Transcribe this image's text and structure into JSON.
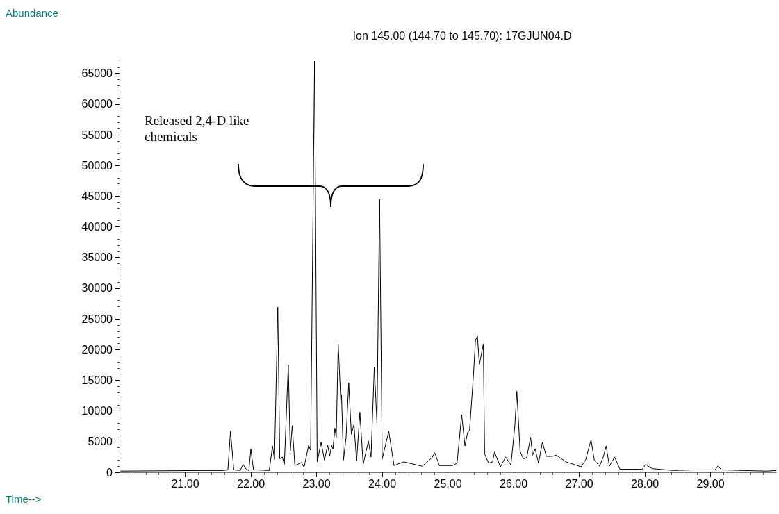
{
  "chart_data": {
    "type": "line",
    "title": "Ion 145.00 (144.70 to 145.70): 17GJUN04.D",
    "xlabel": "Time-->",
    "ylabel": "Abundance",
    "annotations": [
      "Released 2,4-D like chemicals"
    ],
    "xlim": [
      20,
      30
    ],
    "xticks": [
      {
        "value": 21,
        "label": "21.00"
      },
      {
        "value": 22,
        "label": "22.00"
      },
      {
        "value": 23,
        "label": "23.00"
      },
      {
        "value": 24,
        "label": "24.00"
      },
      {
        "value": 25,
        "label": "25.00"
      },
      {
        "value": 26,
        "label": "26.00"
      },
      {
        "value": 27,
        "label": "27.00"
      },
      {
        "value": 28,
        "label": "28.00"
      },
      {
        "value": 29,
        "label": "29.00"
      }
    ],
    "ylim": [
      0,
      67000
    ],
    "yticks": [
      0,
      5000,
      10000,
      15000,
      20000,
      25000,
      30000,
      35000,
      40000,
      45000,
      50000,
      55000,
      60000,
      65000
    ],
    "grid": false,
    "marker": "none",
    "line_style": "solid",
    "series": [
      {
        "color": "#000000",
        "x": [
          20.0,
          21.29,
          21.58,
          21.65,
          21.69,
          21.74,
          21.84,
          21.88,
          21.93,
          21.97,
          22.0,
          22.04,
          22.28,
          22.33,
          22.36,
          22.41,
          22.44,
          22.48,
          22.51,
          22.57,
          22.6,
          22.63,
          22.67,
          22.77,
          22.81,
          22.88,
          22.91,
          22.97,
          23.01,
          23.07,
          23.12,
          23.17,
          23.2,
          23.23,
          23.25,
          23.28,
          23.3,
          23.33,
          23.37,
          23.38,
          23.41,
          23.45,
          23.49,
          23.53,
          23.57,
          23.61,
          23.66,
          23.71,
          23.79,
          23.83,
          23.88,
          23.92,
          23.96,
          24.0,
          24.1,
          24.18,
          24.33,
          24.61,
          24.76,
          24.8,
          24.87,
          25.07,
          25.14,
          25.21,
          25.26,
          25.3,
          25.33,
          25.39,
          25.42,
          25.45,
          25.48,
          25.54,
          25.56,
          25.62,
          25.68,
          25.71,
          25.8,
          25.88,
          25.96,
          26.02,
          26.05,
          26.1,
          26.15,
          26.2,
          26.26,
          26.29,
          26.33,
          26.38,
          26.44,
          26.5,
          26.59,
          26.65,
          26.8,
          27.03,
          27.1,
          27.18,
          27.23,
          27.31,
          27.37,
          27.41,
          27.46,
          27.54,
          27.62,
          27.96,
          28.01,
          28.11,
          28.43,
          28.78,
          29.07,
          29.11,
          29.17,
          29.49,
          29.85,
          30.0
        ],
        "values": [
          200,
          300,
          300,
          400,
          6700,
          400,
          300,
          1300,
          500,
          300,
          3800,
          400,
          300,
          4300,
          2100,
          26900,
          2200,
          2500,
          1300,
          17500,
          3400,
          7600,
          1100,
          1600,
          800,
          4400,
          3600,
          67000,
          1700,
          4900,
          2000,
          4400,
          2700,
          4400,
          3800,
          7200,
          5700,
          20900,
          11500,
          12700,
          2000,
          5700,
          14600,
          6200,
          7800,
          1800,
          9800,
          1300,
          5100,
          2500,
          17200,
          8000,
          44500,
          2200,
          6700,
          1100,
          1700,
          1000,
          2400,
          3200,
          1100,
          1100,
          1500,
          9400,
          4300,
          6500,
          6800,
          15900,
          21500,
          22200,
          17600,
          20900,
          3000,
          1500,
          1700,
          3300,
          900,
          2500,
          1200,
          7600,
          13200,
          3400,
          2200,
          2400,
          5700,
          2800,
          3800,
          1500,
          4900,
          2600,
          2600,
          2800,
          1700,
          900,
          2100,
          5300,
          2000,
          1000,
          2600,
          4300,
          1000,
          2500,
          500,
          500,
          1300,
          600,
          300,
          400,
          400,
          1000,
          400,
          300,
          200,
          300
        ]
      }
    ]
  }
}
